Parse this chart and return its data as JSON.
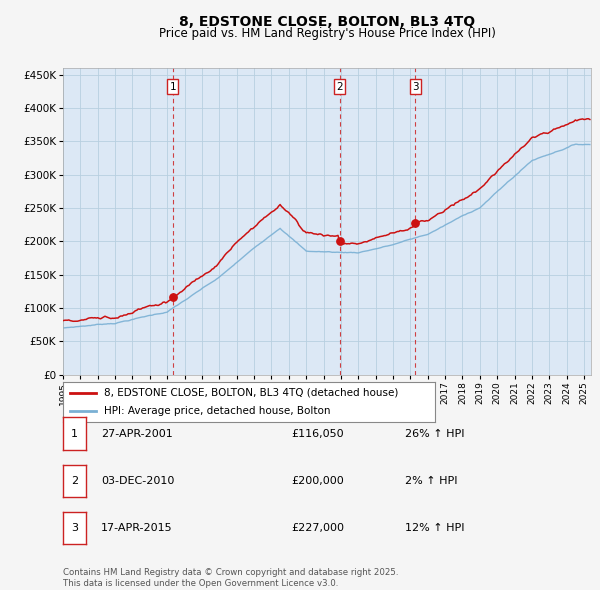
{
  "title": "8, EDSTONE CLOSE, BOLTON, BL3 4TQ",
  "subtitle": "Price paid vs. HM Land Registry's House Price Index (HPI)",
  "legend_line1": "8, EDSTONE CLOSE, BOLTON, BL3 4TQ (detached house)",
  "legend_line2": "HPI: Average price, detached house, Bolton",
  "footer_line1": "Contains HM Land Registry data © Crown copyright and database right 2025.",
  "footer_line2": "This data is licensed under the Open Government Licence v3.0.",
  "transactions": [
    {
      "num": 1,
      "date": "27-APR-2001",
      "price": "£116,050",
      "hpi": "26% ↑ HPI"
    },
    {
      "num": 2,
      "date": "03-DEC-2010",
      "price": "£200,000",
      "hpi": "2% ↑ HPI"
    },
    {
      "num": 3,
      "date": "17-APR-2015",
      "price": "£227,000",
      "hpi": "12% ↑ HPI"
    }
  ],
  "vline_dates": [
    2001.32,
    2010.92,
    2015.29
  ],
  "vline_color": "#cc2222",
  "red_line_color": "#cc1111",
  "blue_line_color": "#7ab0d4",
  "plot_bg_color": "#dce8f5",
  "grid_color": "#b8cfe0",
  "background_color": "#f5f5f5",
  "ylim": [
    0,
    460000
  ],
  "xlim_start": 1995.0,
  "xlim_end": 2025.4
}
